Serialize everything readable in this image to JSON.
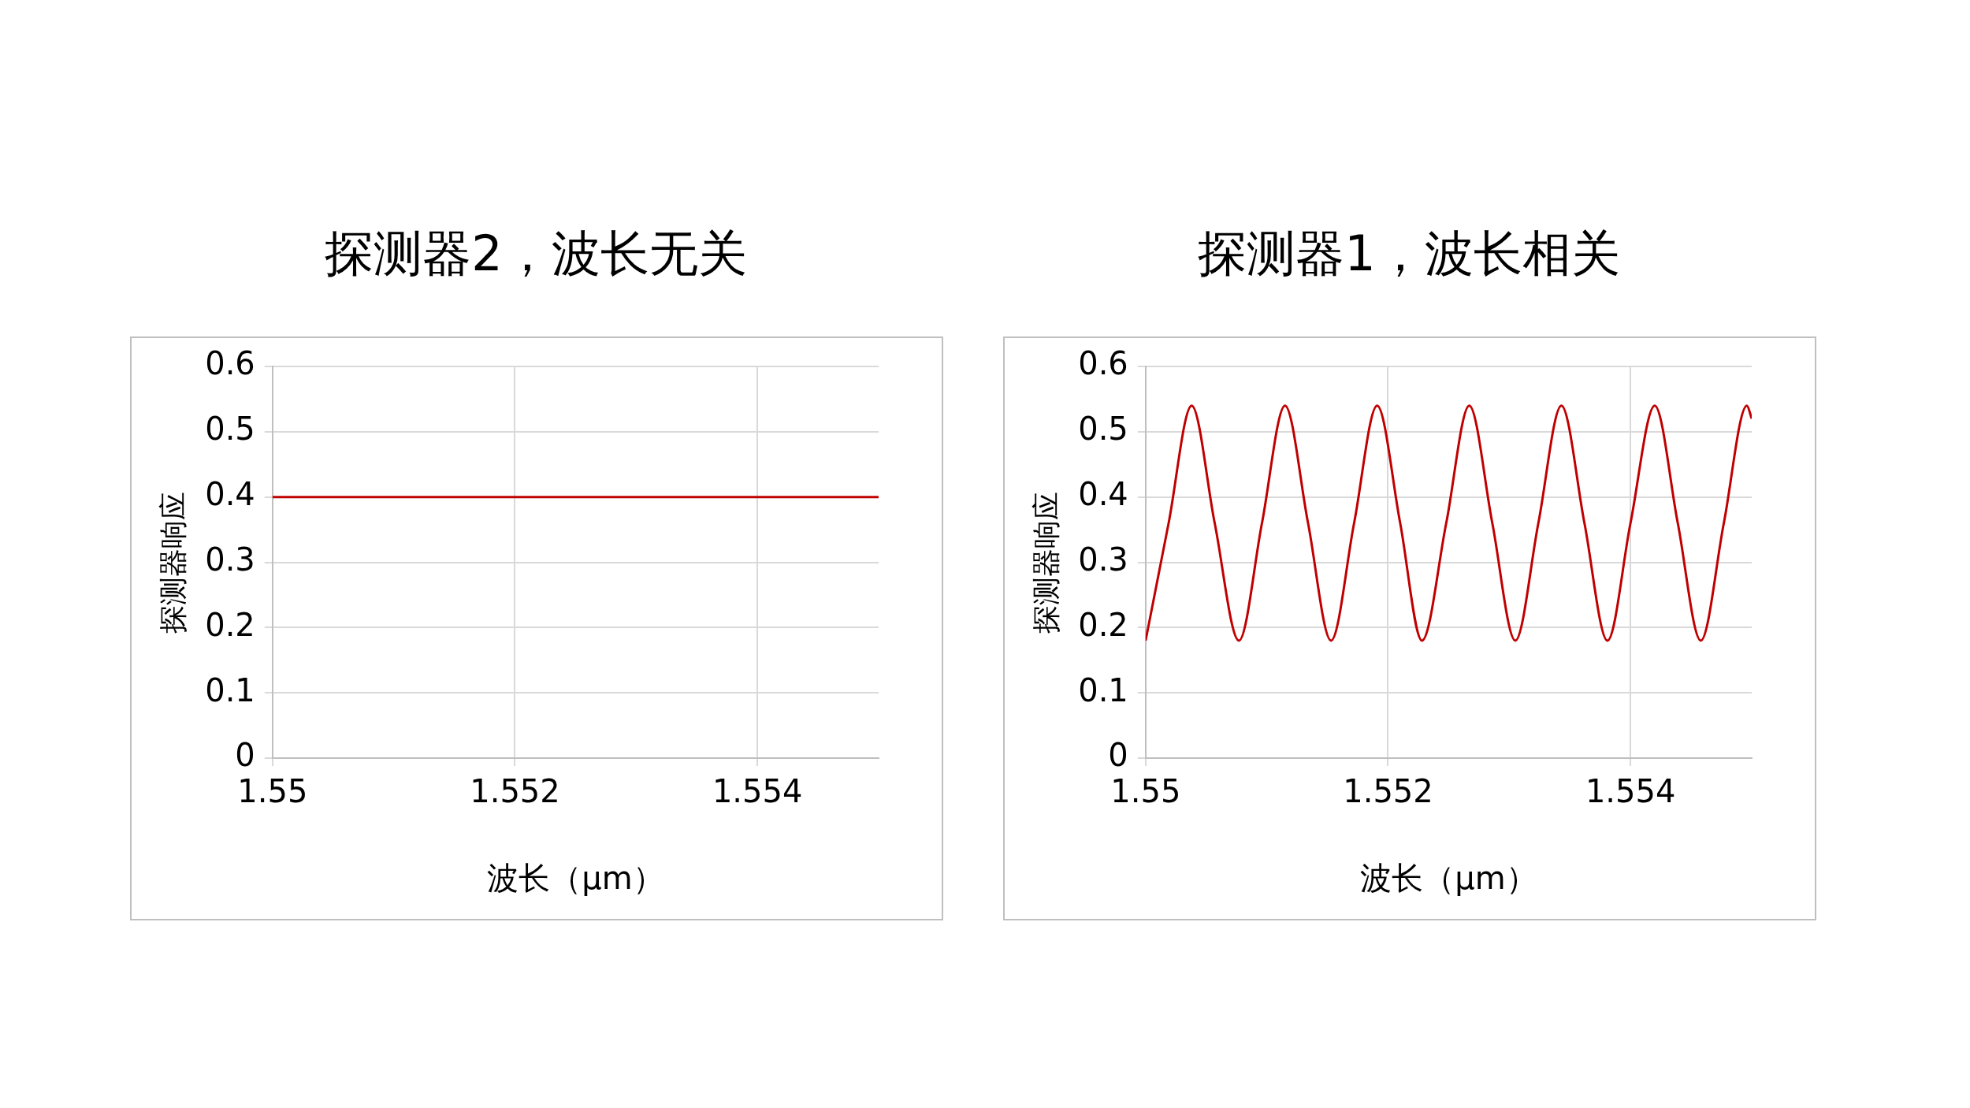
{
  "chart_data": [
    {
      "type": "line",
      "title": "探测器2，波长无关",
      "xlabel": "波长（μm）",
      "ylabel": "探测器响应",
      "xlim": [
        1.55,
        1.555
      ],
      "xticks": [
        1.55,
        1.552,
        1.554
      ],
      "ylim": [
        0,
        0.6
      ],
      "yticks": [
        0,
        0.1,
        0.2,
        0.3,
        0.4,
        0.5,
        0.6
      ],
      "grid": true,
      "legend": false,
      "series": [
        {
          "color": "#c00000",
          "x": [
            1.55,
            1.555
          ],
          "values": [
            0.4,
            0.4
          ]
        }
      ]
    },
    {
      "type": "line",
      "title": "探测器1，波长相关",
      "xlabel": "波长（μm）",
      "ylabel": "探测器响应",
      "xlim": [
        1.55,
        1.555
      ],
      "xticks": [
        1.55,
        1.552,
        1.554
      ],
      "ylim": [
        0,
        0.6
      ],
      "yticks": [
        0,
        0.1,
        0.2,
        0.3,
        0.4,
        0.5,
        0.6
      ],
      "grid": true,
      "legend": false,
      "series": [
        {
          "color": "#c00000",
          "x": [
            1.55,
            1.55019,
            1.55038,
            1.55057,
            1.55077,
            1.55096,
            1.55115,
            1.55134,
            1.55153,
            1.55172,
            1.55191,
            1.5521,
            1.55228,
            1.55248,
            1.55267,
            1.55286,
            1.55305,
            1.55324,
            1.55343,
            1.55362,
            1.55381,
            1.554,
            1.5542,
            1.55439,
            1.55458,
            1.55477,
            1.55496,
            1.555
          ],
          "values": [
            0.18,
            0.36,
            0.54,
            0.36,
            0.18,
            0.36,
            0.54,
            0.36,
            0.18,
            0.36,
            0.54,
            0.36,
            0.18,
            0.36,
            0.54,
            0.36,
            0.18,
            0.36,
            0.54,
            0.36,
            0.18,
            0.36,
            0.54,
            0.36,
            0.18,
            0.36,
            0.54,
            0.52
          ]
        }
      ]
    }
  ]
}
